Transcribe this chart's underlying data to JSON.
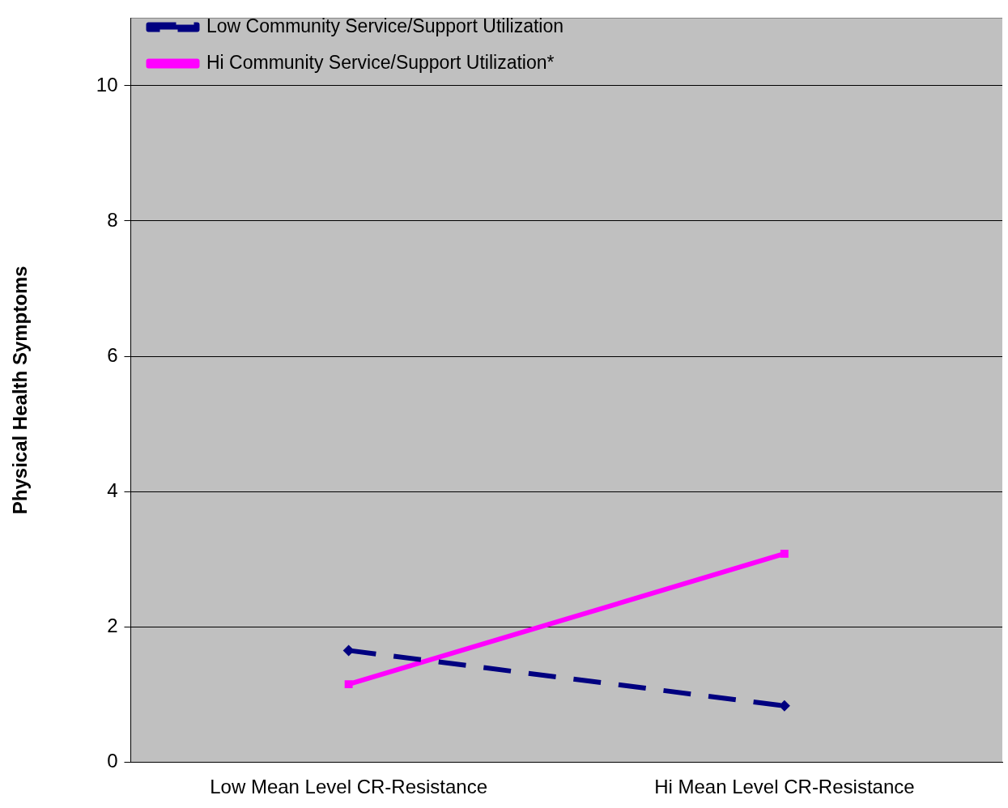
{
  "chart_data": {
    "type": "line",
    "ylabel": "Physical Health Symptoms",
    "categories": [
      "Low Mean Level CR-Resistance",
      "Hi Mean Level CR-Resistance"
    ],
    "series": [
      {
        "name": "Low Community Service/Support Utilization",
        "color": "#000080",
        "values": [
          1.65,
          0.83
        ],
        "line_style": "dashed",
        "marker": "diamond"
      },
      {
        "name": "Hi Community Service/Support Utilization*",
        "color": "#ff00ff",
        "values": [
          1.15,
          3.08
        ],
        "line_style": "solid",
        "marker": "square"
      }
    ],
    "ylim": [
      0,
      11
    ],
    "yticks": [
      0,
      2,
      4,
      6,
      8,
      10
    ],
    "grid": "y",
    "legend": "top left"
  }
}
